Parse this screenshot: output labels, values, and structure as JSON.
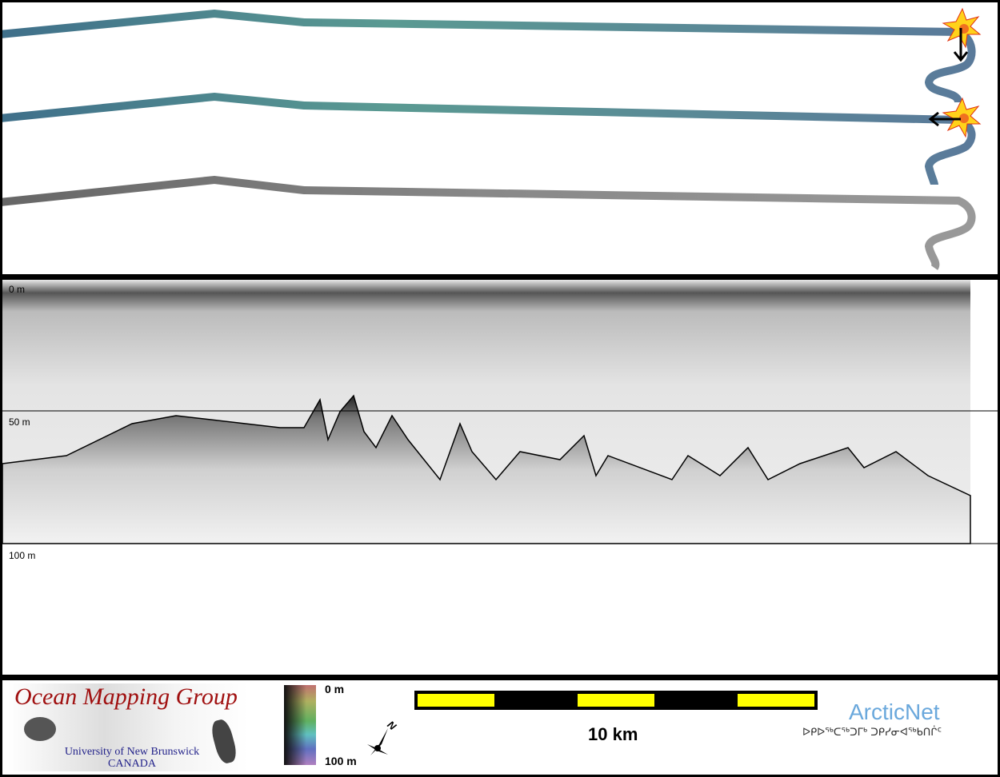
{
  "echogram": {
    "depth_labels": [
      "0 m",
      "50 m",
      "100 m"
    ]
  },
  "legend": {
    "logo": {
      "title": "Ocean Mapping Group",
      "line1": "University of New Brunswick",
      "line2": "CANADA"
    },
    "colorbar": {
      "top_label": "0 m",
      "bottom_label": "100 m"
    },
    "north_arrow": "N",
    "scale_bar": {
      "label": "10 km",
      "colors": [
        "#ffff00",
        "#000000"
      ]
    },
    "arcticnet": {
      "name": "ArcticNet",
      "syllabics": "ᐅᑭᐅᖅᑕᖅᑐᒥᒃ ᑐᑭᓯᓂᐊᖅᑲᑎᒌᑦ"
    }
  }
}
